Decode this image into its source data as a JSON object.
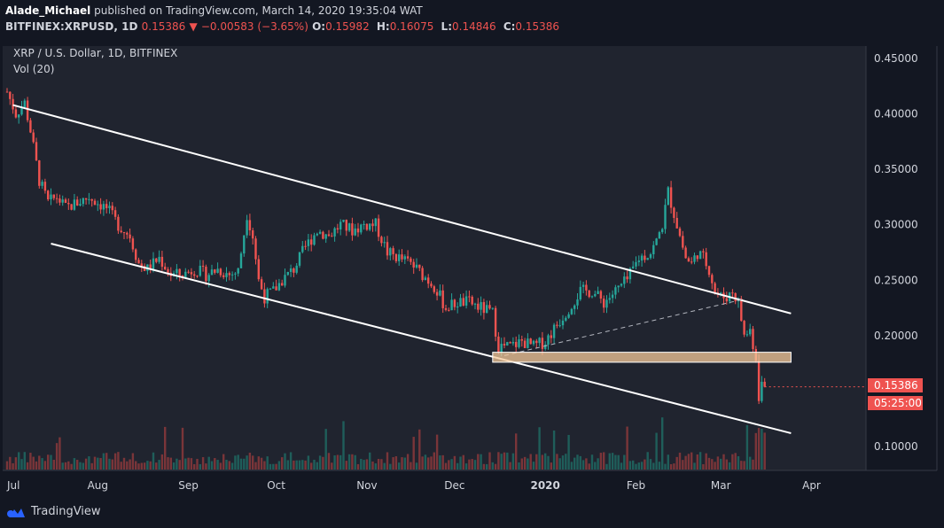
{
  "header": {
    "author": "Alade_Michael",
    "published_text": "published on TradingView.com, March 14, 2020 19:35:04 WAT",
    "symbol": "BITFINEX:XRPUSD, 1D",
    "last": "0.15386",
    "change_arrow": "▼",
    "change": "−0.00583 (−3.65%)",
    "ohlc": [
      {
        "k": "O:",
        "v": "0.15982"
      },
      {
        "k": "H:",
        "v": "0.16075"
      },
      {
        "k": "L:",
        "v": "0.14846"
      },
      {
        "k": "C:",
        "v": "0.15386"
      }
    ]
  },
  "legend": {
    "title": "XRP / U.S. Dollar, 1D, BITFINEX",
    "vol": "Vol (20)"
  },
  "price_axis": {
    "ticks": [
      "0.45000",
      "0.40000",
      "0.35000",
      "0.30000",
      "0.25000",
      "0.20000",
      "0.10000"
    ],
    "tick_values": [
      0.45,
      0.4,
      0.35,
      0.3,
      0.25,
      0.2,
      0.1
    ],
    "last_price_label": "0.15386",
    "countdown_label": "05:25:00"
  },
  "time_axis": {
    "ticks": [
      "Jul",
      "Aug",
      "Sep",
      "Oct",
      "Nov",
      "Dec",
      "2020",
      "Feb",
      "Mar",
      "Apr"
    ],
    "tick_days": [
      0,
      31,
      62,
      92,
      123,
      153,
      184,
      215,
      244,
      275
    ]
  },
  "colors": {
    "bg": "#131722",
    "up": "#26a69a",
    "down": "#ef5350",
    "trendline": "#ffffff",
    "zone": "#f5c99b",
    "label_bg": "#ef5350",
    "axis_text": "#d1d4dc",
    "grid_border": "#363a45"
  },
  "chart_data": {
    "type": "candlestick",
    "title": "XRP / U.S. Dollar, 1D, BITFINEX",
    "x_unit": "days since Jul 1 2019",
    "ylim": [
      0.07,
      0.47
    ],
    "close_path": [
      [
        0,
        0.42
      ],
      [
        3,
        0.4
      ],
      [
        6,
        0.41
      ],
      [
        8,
        0.385
      ],
      [
        11,
        0.34
      ],
      [
        14,
        0.32
      ],
      [
        17,
        0.325
      ],
      [
        20,
        0.315
      ],
      [
        24,
        0.32
      ],
      [
        28,
        0.325
      ],
      [
        31,
        0.32
      ],
      [
        34,
        0.315
      ],
      [
        38,
        0.3
      ],
      [
        42,
        0.29
      ],
      [
        45,
        0.265
      ],
      [
        48,
        0.26
      ],
      [
        52,
        0.27
      ],
      [
        56,
        0.255
      ],
      [
        60,
        0.255
      ],
      [
        64,
        0.26
      ],
      [
        68,
        0.255
      ],
      [
        72,
        0.26
      ],
      [
        76,
        0.255
      ],
      [
        79,
        0.258
      ],
      [
        82,
        0.31
      ],
      [
        84,
        0.29
      ],
      [
        86,
        0.25
      ],
      [
        88,
        0.235
      ],
      [
        91,
        0.24
      ],
      [
        94,
        0.25
      ],
      [
        98,
        0.26
      ],
      [
        102,
        0.28
      ],
      [
        106,
        0.295
      ],
      [
        110,
        0.29
      ],
      [
        114,
        0.3
      ],
      [
        118,
        0.295
      ],
      [
        122,
        0.3
      ],
      [
        126,
        0.3
      ],
      [
        130,
        0.275
      ],
      [
        134,
        0.27
      ],
      [
        138,
        0.265
      ],
      [
        142,
        0.255
      ],
      [
        146,
        0.245
      ],
      [
        150,
        0.225
      ],
      [
        154,
        0.23
      ],
      [
        158,
        0.23
      ],
      [
        162,
        0.225
      ],
      [
        166,
        0.22
      ],
      [
        168,
        0.19
      ],
      [
        172,
        0.19
      ],
      [
        176,
        0.195
      ],
      [
        180,
        0.19
      ],
      [
        184,
        0.195
      ],
      [
        188,
        0.21
      ],
      [
        192,
        0.225
      ],
      [
        196,
        0.24
      ],
      [
        200,
        0.24
      ],
      [
        204,
        0.23
      ],
      [
        208,
        0.24
      ],
      [
        212,
        0.25
      ],
      [
        216,
        0.27
      ],
      [
        220,
        0.275
      ],
      [
        222,
        0.285
      ],
      [
        224,
        0.3
      ],
      [
        226,
        0.33
      ],
      [
        228,
        0.31
      ],
      [
        230,
        0.29
      ],
      [
        232,
        0.27
      ],
      [
        234,
        0.265
      ],
      [
        236,
        0.275
      ],
      [
        238,
        0.27
      ],
      [
        240,
        0.26
      ],
      [
        242,
        0.24
      ],
      [
        244,
        0.235
      ],
      [
        246,
        0.235
      ],
      [
        248,
        0.24
      ],
      [
        250,
        0.23
      ],
      [
        252,
        0.2
      ],
      [
        254,
        0.205
      ],
      [
        256,
        0.18
      ],
      [
        257,
        0.14
      ],
      [
        258,
        0.155
      ],
      [
        259,
        0.154
      ]
    ],
    "last_close": 0.15386,
    "annotations": {
      "upper_channel": [
        [
          2,
          0.408
        ],
        [
          268,
          0.22
        ]
      ],
      "lower_channel": [
        [
          15,
          0.283
        ],
        [
          268,
          0.112
        ]
      ],
      "support_zone": {
        "x_from": 166,
        "x_to": 268,
        "y_low": 0.176,
        "y_high": 0.185
      },
      "dashed_trend": [
        [
          170,
          0.182
        ],
        [
          252,
          0.233
        ]
      ]
    }
  }
}
